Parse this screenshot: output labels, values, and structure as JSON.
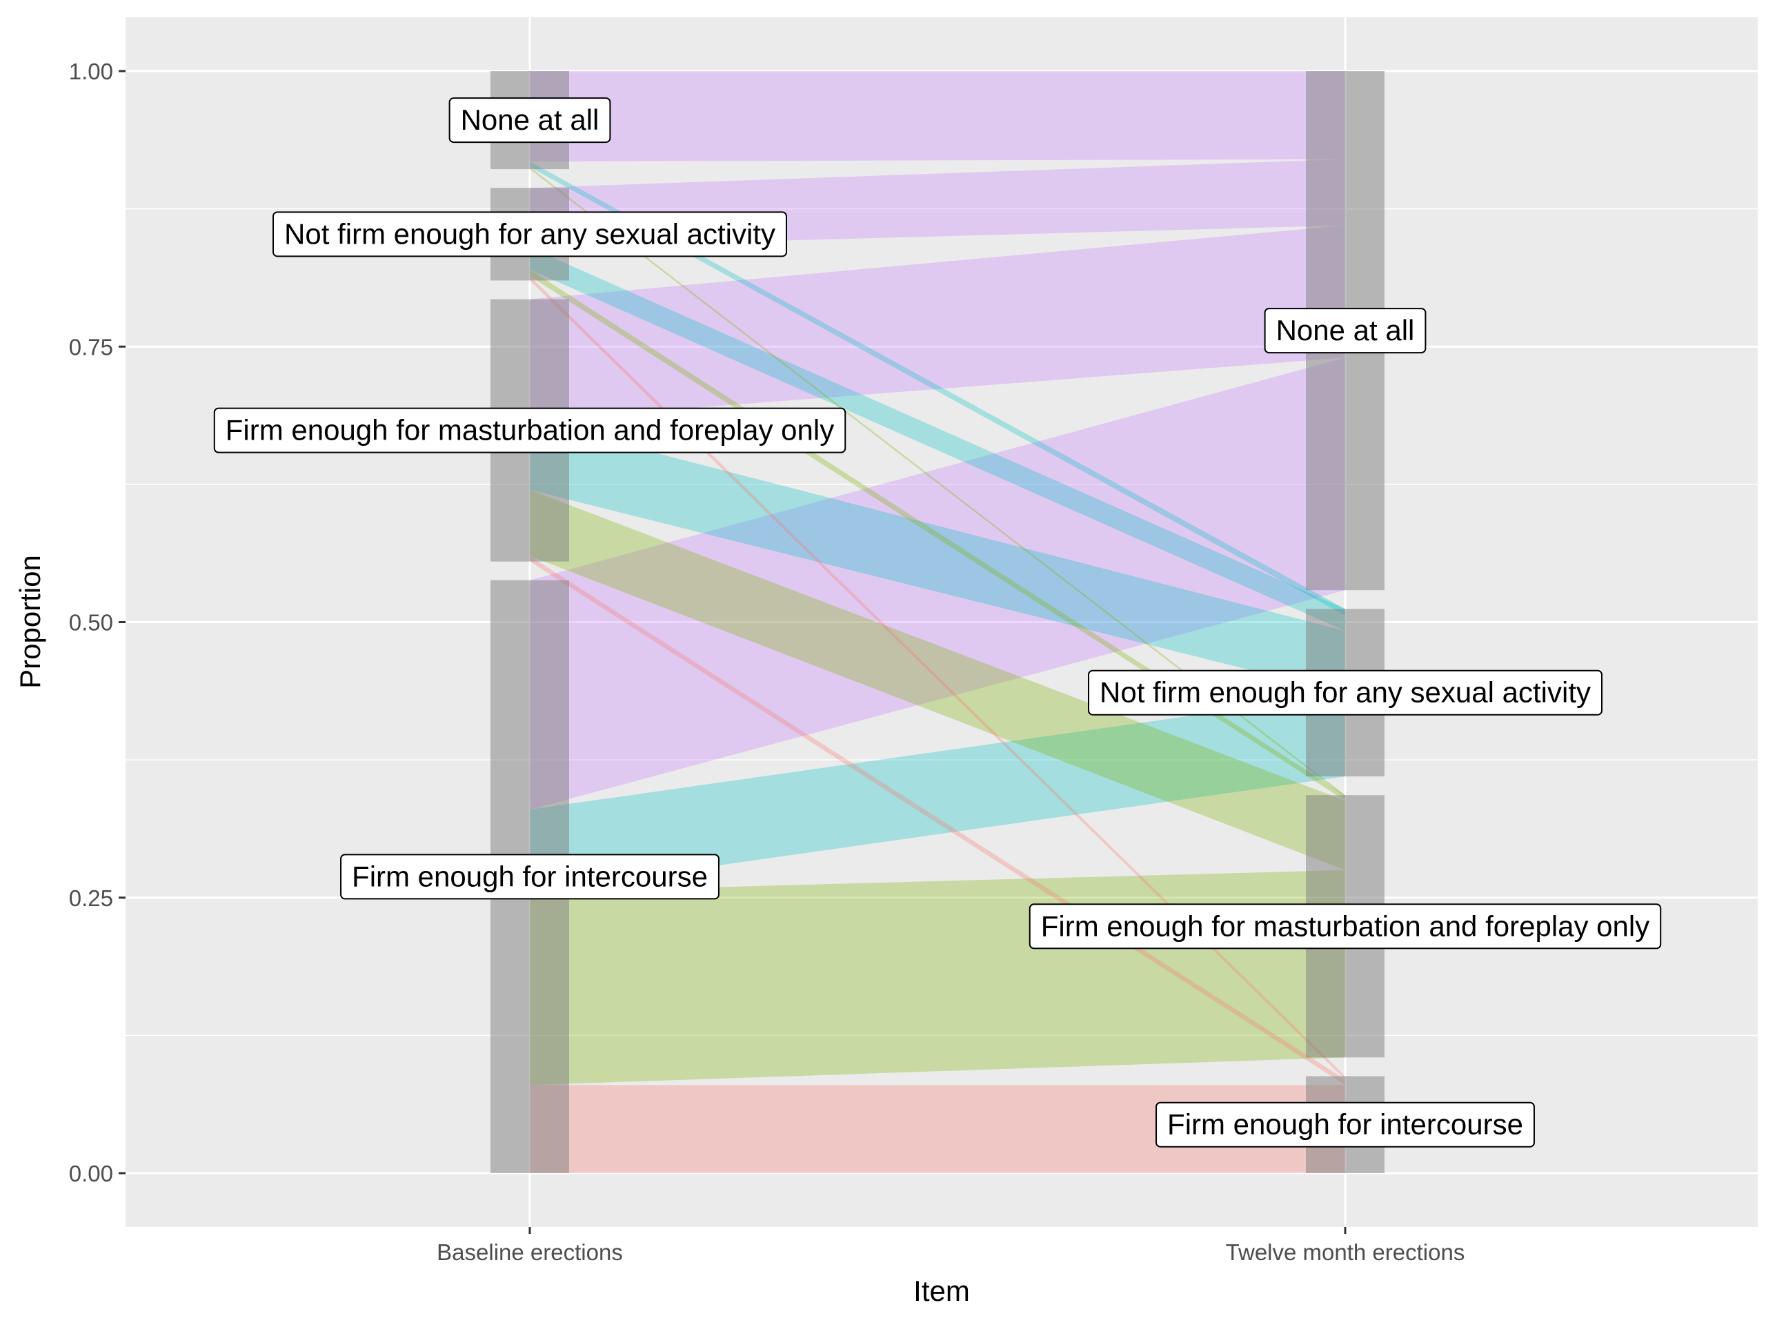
{
  "chart_data": {
    "type": "alluvial",
    "xlabel": "Item",
    "ylabel": "Proportion",
    "axes": [
      "Baseline erections",
      "Twelve month erections"
    ],
    "ylim": [
      -0.045,
      1.045
    ],
    "yticks": [
      {
        "value": 0.0,
        "label": "0.00"
      },
      {
        "value": 0.25,
        "label": "0.25"
      },
      {
        "value": 0.5,
        "label": "0.50"
      },
      {
        "value": 0.75,
        "label": "0.75"
      },
      {
        "value": 1.0,
        "label": "1.00"
      }
    ],
    "grid": true,
    "categories": [
      "Firm enough for intercourse",
      "Firm enough for masturbation and foreplay only",
      "Not firm enough for any sexual activity",
      "None at all"
    ],
    "category_colors": {
      "Firm enough for intercourse": "#F8766D",
      "Firm enough for masturbation and foreplay only": "#7CAE00",
      "Not firm enough for any sexual activity": "#00BFC4",
      "None at all": "#C77CFF"
    },
    "strata": {
      "Baseline erections": [
        {
          "category": "Firm enough for intercourse",
          "ymin": 0.0,
          "ymax": 0.538
        },
        {
          "category": "Firm enough for masturbation and foreplay only",
          "ymin": 0.555,
          "ymax": 0.793
        },
        {
          "category": "Not firm enough for any sexual activity",
          "ymin": 0.81,
          "ymax": 0.894
        },
        {
          "category": "None at all",
          "ymin": 0.911,
          "ymax": 1.0
        }
      ],
      "Twelve month erections": [
        {
          "category": "Firm enough for intercourse",
          "ymin": 0.0,
          "ymax": 0.088
        },
        {
          "category": "Firm enough for masturbation and foreplay only",
          "ymin": 0.105,
          "ymax": 0.343
        },
        {
          "category": "Not firm enough for any sexual activity",
          "ymin": 0.36,
          "ymax": 0.512
        },
        {
          "category": "None at all",
          "ymin": 0.529,
          "ymax": 1.0
        }
      ]
    },
    "flows": [
      {
        "category": "Firm enough for intercourse",
        "from": [
          0.0,
          0.08
        ],
        "to": [
          0.0,
          0.08
        ]
      },
      {
        "category": "Firm enough for masturbation and foreplay only",
        "from": [
          0.08,
          0.255
        ],
        "to": [
          0.105,
          0.275
        ]
      },
      {
        "category": "Not firm enough for any sexual activity",
        "from": [
          0.255,
          0.33
        ],
        "to": [
          0.36,
          0.435
        ]
      },
      {
        "category": "None at all",
        "from": [
          0.33,
          0.538
        ],
        "to": [
          0.529,
          0.74
        ]
      },
      {
        "category": "Firm enough for intercourse",
        "from": [
          0.555,
          0.56
        ],
        "to": [
          0.08,
          0.085
        ]
      },
      {
        "category": "Firm enough for masturbation and foreplay only",
        "from": [
          0.56,
          0.62
        ],
        "to": [
          0.275,
          0.338
        ]
      },
      {
        "category": "Not firm enough for any sexual activity",
        "from": [
          0.62,
          0.683
        ],
        "to": [
          0.435,
          0.492
        ]
      },
      {
        "category": "None at all",
        "from": [
          0.683,
          0.793
        ],
        "to": [
          0.74,
          0.86
        ]
      },
      {
        "category": "Firm enough for intercourse",
        "from": [
          0.81,
          0.814
        ],
        "to": [
          0.085,
          0.088
        ]
      },
      {
        "category": "Firm enough for masturbation and foreplay only",
        "from": [
          0.814,
          0.82
        ],
        "to": [
          0.338,
          0.343
        ]
      },
      {
        "category": "Not firm enough for any sexual activity",
        "from": [
          0.82,
          0.84
        ],
        "to": [
          0.492,
          0.512
        ]
      },
      {
        "category": "None at all",
        "from": [
          0.84,
          0.894
        ],
        "to": [
          0.86,
          0.92
        ]
      },
      {
        "category": "Firm enough for masturbation and foreplay only",
        "from": [
          0.911,
          0.913
        ],
        "to": [
          0.341,
          0.343
        ]
      },
      {
        "category": "Not firm enough for any sexual activity",
        "from": [
          0.913,
          0.918
        ],
        "to": [
          0.506,
          0.512
        ]
      },
      {
        "category": "None at all",
        "from": [
          0.918,
          1.0
        ],
        "to": [
          0.92,
          1.0
        ]
      }
    ]
  }
}
